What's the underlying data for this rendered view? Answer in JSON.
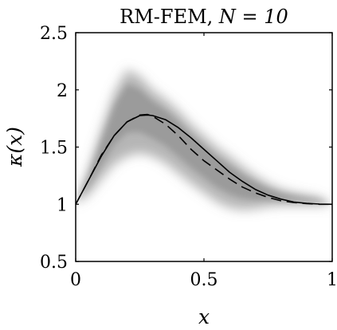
{
  "chart_data": {
    "type": "line",
    "title": "RM-FEM, ",
    "title_math": "N = 10",
    "xlabel": "x",
    "ylabel": "κ(x)",
    "xlim": [
      0,
      1
    ],
    "ylim": [
      0.5,
      2.5
    ],
    "xticks": [
      0,
      0.5,
      1
    ],
    "xtick_labels": [
      "0",
      "0.5",
      "1"
    ],
    "yticks": [
      0.5,
      1,
      1.5,
      2,
      2.5
    ],
    "ytick_labels": [
      "0.5",
      "1",
      "1.5",
      "2",
      "2.5"
    ],
    "grid": false,
    "legend": "none",
    "series": [
      {
        "style": "solid",
        "color": "#000000",
        "x": [
          0,
          0.05,
          0.1,
          0.15,
          0.2,
          0.25,
          0.28,
          0.3,
          0.35,
          0.4,
          0.45,
          0.5,
          0.55,
          0.6,
          0.65,
          0.7,
          0.75,
          0.8,
          0.85,
          0.9,
          0.95,
          1
        ],
        "y": [
          1.0,
          1.21,
          1.42,
          1.6,
          1.72,
          1.775,
          1.78,
          1.775,
          1.74,
          1.67,
          1.58,
          1.48,
          1.38,
          1.28,
          1.2,
          1.13,
          1.08,
          1.045,
          1.02,
          1.008,
          1.002,
          1.0
        ]
      },
      {
        "style": "dashed",
        "color": "#000000",
        "x": [
          0,
          0.05,
          0.1,
          0.15,
          0.2,
          0.25,
          0.28,
          0.3,
          0.35,
          0.4,
          0.45,
          0.5,
          0.55,
          0.6,
          0.65,
          0.7,
          0.75,
          0.8,
          0.85,
          0.9,
          0.95,
          1
        ],
        "y": [
          1.0,
          1.21,
          1.43,
          1.6,
          1.72,
          1.78,
          1.785,
          1.77,
          1.7,
          1.6,
          1.48,
          1.38,
          1.3,
          1.22,
          1.15,
          1.1,
          1.06,
          1.03,
          1.015,
          1.005,
          1.0,
          1.0
        ]
      }
    ],
    "band": {
      "color": "#7a7a7a",
      "x": [
        0,
        0.05,
        0.1,
        0.15,
        0.2,
        0.25,
        0.3,
        0.35,
        0.4,
        0.45,
        0.5,
        0.55,
        0.6,
        0.65,
        0.7,
        0.75,
        0.8,
        0.85,
        0.9,
        0.95,
        1
      ],
      "lower": [
        1.0,
        1.08,
        1.22,
        1.35,
        1.42,
        1.45,
        1.42,
        1.36,
        1.27,
        1.18,
        1.1,
        1.02,
        0.97,
        0.95,
        0.96,
        0.98,
        0.99,
        0.99,
        0.99,
        0.99,
        1.0
      ],
      "upper": [
        1.0,
        1.3,
        1.65,
        1.98,
        2.18,
        2.12,
        2.0,
        1.92,
        1.82,
        1.7,
        1.6,
        1.5,
        1.42,
        1.33,
        1.25,
        1.18,
        1.13,
        1.1,
        1.08,
        1.06,
        1.0
      ]
    }
  }
}
